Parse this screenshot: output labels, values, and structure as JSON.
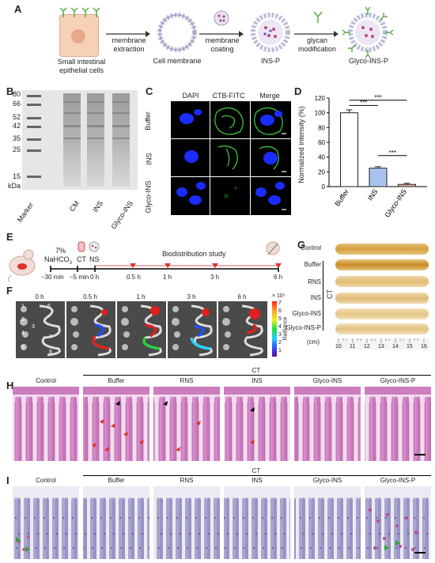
{
  "panel_labels": [
    "A",
    "B",
    "C",
    "D",
    "E",
    "F",
    "G",
    "H",
    "I"
  ],
  "A": {
    "cells_label": "Small intestinal epithelial cells",
    "step1": "membrane extraction",
    "cm_label": "Cell membrane",
    "step2": "membrane coating",
    "insp_label": "INS-P",
    "step3": "glycan modification",
    "glyco_label": "Glyco-INS-P"
  },
  "B": {
    "ladder": [
      "80",
      "66",
      "52",
      "42",
      "35",
      "25",
      "15"
    ],
    "unit": "kDa",
    "lanes": [
      "Marker",
      "CM",
      "INS",
      "Glyco-INS"
    ]
  },
  "C": {
    "cols": [
      "DAPI",
      "CTB-FITC",
      "Merge"
    ],
    "rows": [
      "Buffer",
      "INS",
      "Glyco-INS"
    ]
  },
  "D": {
    "ylabel": "Normalized intensity (%)",
    "sig": [
      "***",
      "***",
      "***"
    ]
  },
  "chart_data": {
    "type": "bar",
    "categories": [
      "Buffer",
      "INS",
      "Glyco-INS"
    ],
    "values": [
      100,
      25,
      3
    ],
    "errors": [
      4,
      2,
      1.5
    ],
    "colors": [
      "#ffffff",
      "#a8c4ee",
      "#e9b3b3"
    ],
    "ylabel": "Normalized intensity (%)",
    "ylim": [
      0,
      120
    ],
    "yticks": [
      "0",
      "20",
      "40",
      "60",
      "80",
      "100",
      "120"
    ]
  },
  "E": {
    "pre1": "7%",
    "pre2": "NaHCO",
    "pre2_sub": "3",
    "ct": "CT",
    "ns": "NS",
    "study": "Biodistribution study",
    "times": [
      "−30 min",
      "−5 min",
      "0 h",
      "0.5 h",
      "1 h",
      "3 h",
      "6 h"
    ]
  },
  "F": {
    "times": [
      "0 h",
      "0.5 h",
      "1 h",
      "3 h",
      "6 h"
    ],
    "organ_nums": [
      "1",
      "2",
      "3",
      "4",
      "5",
      "6",
      "7",
      "8"
    ],
    "scale_exp": "× 10⁵",
    "scale_ticks": [
      "7",
      "6",
      "5",
      "4",
      "3",
      "2",
      "1"
    ],
    "scale_label": "Radiance"
  },
  "G": {
    "rows": [
      "Control",
      "Buffer",
      "RNS",
      "INS",
      "Glyco-INS",
      "Glyco-INS-P"
    ],
    "ct": "CT",
    "ruler_unit": "(cm)",
    "ruler_ticks": [
      "10",
      "11",
      "12",
      "13",
      "14",
      "15",
      "16"
    ]
  },
  "H": {
    "ct": "CT",
    "cols": [
      "Control",
      "Buffer",
      "RNS",
      "INS",
      "Glyco-INS",
      "Glyco-INS-P"
    ]
  },
  "I": {
    "ct": "CT",
    "cols": [
      "Control",
      "Buffer",
      "RNS",
      "INS",
      "Glyco-INS",
      "Glyco-INS-P"
    ]
  }
}
